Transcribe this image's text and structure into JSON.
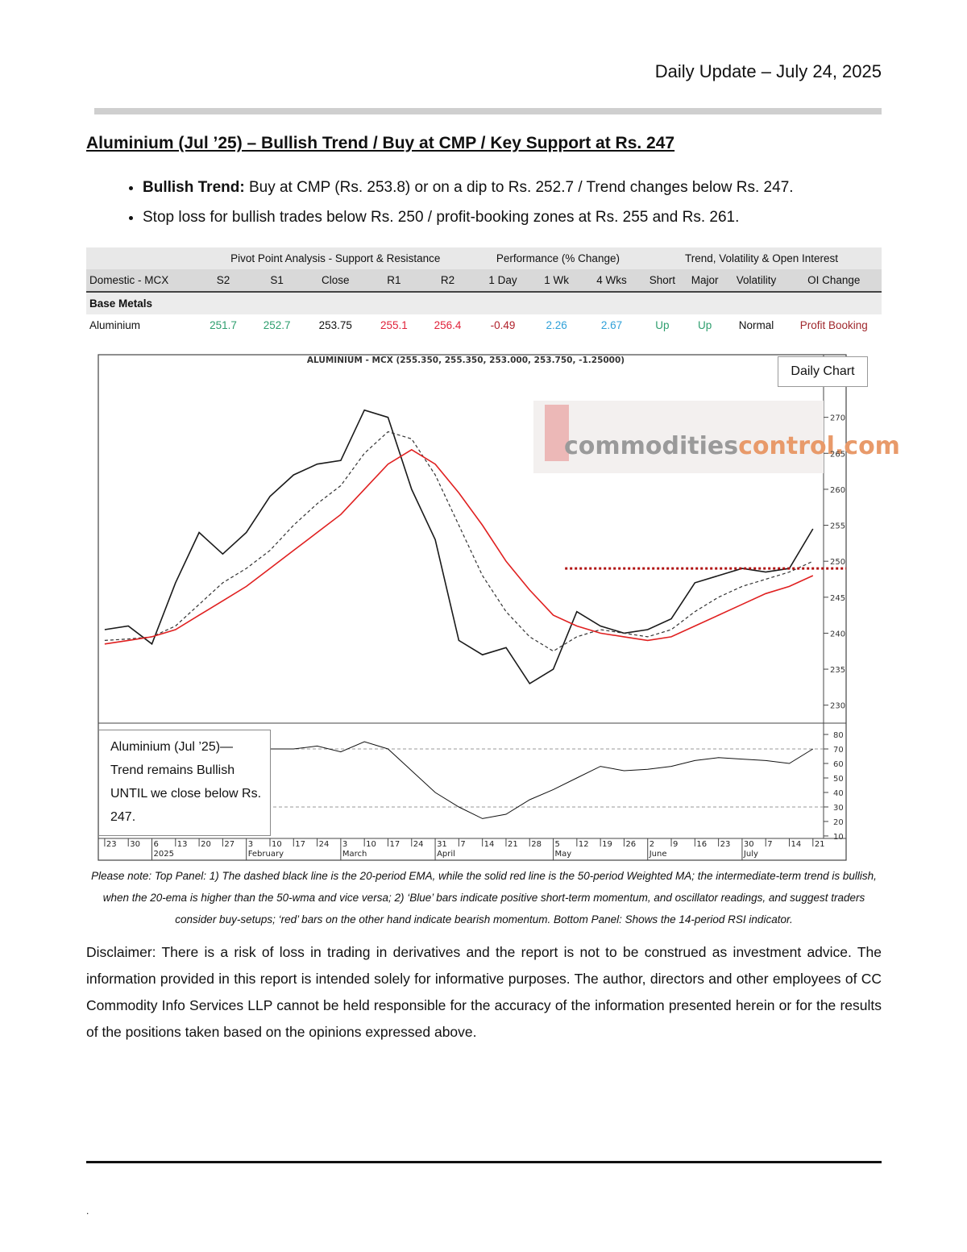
{
  "header": {
    "title": "Daily Update – July 24, 2025"
  },
  "section_title": "Aluminium (Jul ’25) – Bullish Trend / Buy at CMP / Key Support at Rs. 247",
  "bullets": [
    {
      "label": "Bullish Trend:",
      "text": "Buy at CMP (Rs. 253.8) or on a dip to Rs. 252.7 / Trend changes below Rs. 247."
    },
    {
      "text": "Stop loss for bullish trades below Rs. 250 / profit-booking zones at Rs. 255 and Rs. 261."
    }
  ],
  "table": {
    "groups": [
      "Pivot Point Analysis - Support & Resistance",
      "Performance (% Change)",
      "Trend, Volatility & Open Interest"
    ],
    "columns": [
      "Domestic - MCX",
      "S2",
      "S1",
      "Close",
      "R1",
      "R2",
      "1 Day",
      "1 Wk",
      "4 Wks",
      "Short",
      "Major",
      "Volatility",
      "OI Change"
    ],
    "section": "Base Metals",
    "rows": [
      [
        "Aluminium",
        "251.7",
        "252.7",
        "253.75",
        "255.1",
        "256.4",
        "-0.49",
        "2.26",
        "2.67",
        "Up",
        "Up",
        "Normal",
        "Profit Booking"
      ]
    ]
  },
  "chart_data": {
    "type": "line",
    "title": "ALUMINIUM - MCX (255.350, 255.350, 253.000, 253.750, -1.25000)",
    "label": "Daily Chart",
    "watermark": [
      "commodities",
      "control.com"
    ],
    "annotation": "Aluminium (Jul ’25)—Trend remains Bullish UNTIL we close below Rs. 247.",
    "x": [
      0,
      1,
      2,
      3,
      4,
      5,
      6,
      7,
      8,
      9,
      10,
      11,
      12,
      13,
      14,
      15,
      16,
      17,
      18,
      19,
      20,
      21,
      22,
      23,
      24,
      25,
      26,
      27,
      28,
      29,
      30
    ],
    "xlim": [
      -0.27,
      30.45
    ],
    "xticks": [
      {
        "value": 0,
        "label": "23"
      },
      {
        "value": 1,
        "label": "30"
      },
      {
        "value": 2,
        "label": "6"
      },
      {
        "value": 3,
        "label": "13"
      },
      {
        "value": 4,
        "label": "20"
      },
      {
        "value": 5,
        "label": "27"
      },
      {
        "value": 6,
        "label": "3"
      },
      {
        "value": 7,
        "label": "10"
      },
      {
        "value": 8,
        "label": "17"
      },
      {
        "value": 9,
        "label": "24"
      },
      {
        "value": 10,
        "label": "3"
      },
      {
        "value": 11,
        "label": "10"
      },
      {
        "value": 12,
        "label": "17"
      },
      {
        "value": 13,
        "label": "24"
      },
      {
        "value": 14,
        "label": "31"
      },
      {
        "value": 15,
        "label": "7"
      },
      {
        "value": 16,
        "label": "14"
      },
      {
        "value": 17,
        "label": "21"
      },
      {
        "value": 18,
        "label": "28"
      },
      {
        "value": 19,
        "label": "5"
      },
      {
        "value": 20,
        "label": "12"
      },
      {
        "value": 21,
        "label": "19"
      },
      {
        "value": 22,
        "label": "26"
      },
      {
        "value": 23,
        "label": "2"
      },
      {
        "value": 24,
        "label": "9"
      },
      {
        "value": 25,
        "label": "16"
      },
      {
        "value": 26,
        "label": "23"
      },
      {
        "value": 27,
        "label": "30"
      },
      {
        "value": 28,
        "label": "7"
      },
      {
        "value": 29,
        "label": "14"
      },
      {
        "value": 30,
        "label": "21"
      }
    ],
    "month_ticks": [
      {
        "value": 2,
        "label": "2025"
      },
      {
        "value": 6,
        "label": "February"
      },
      {
        "value": 10,
        "label": "March"
      },
      {
        "value": 14,
        "label": "April"
      },
      {
        "value": 19,
        "label": "May"
      },
      {
        "value": 23,
        "label": "June"
      },
      {
        "value": 27,
        "label": "July"
      }
    ],
    "ylim": [
      227.5,
      278.7
    ],
    "yticks": [
      230,
      235,
      240,
      245,
      250,
      255,
      260,
      265,
      270
    ],
    "series": [
      {
        "color": "#1a1a1a",
        "dash": false,
        "values": [
          240.5,
          241,
          238.5,
          247,
          254,
          251,
          254,
          259,
          262,
          263.5,
          264,
          271,
          270,
          260,
          253,
          239,
          237,
          238,
          233,
          235,
          243,
          241,
          240,
          240.5,
          242,
          247,
          248,
          249,
          248.5,
          249,
          254.5
        ]
      },
      {
        "color": "#333333",
        "dash": true,
        "values": [
          239,
          239.2,
          239.5,
          241,
          244,
          247,
          249,
          251.5,
          255,
          258,
          260.5,
          265,
          268,
          267,
          262,
          255,
          248,
          243,
          239.5,
          237.5,
          239.5,
          240.5,
          240,
          239.5,
          240.5,
          243,
          245,
          246.5,
          247.5,
          248.5,
          250
        ]
      },
      {
        "color": "#e02020",
        "dash": false,
        "values": [
          238.5,
          239,
          239.5,
          240.5,
          242.5,
          244.5,
          246.5,
          249,
          251.5,
          254,
          256.5,
          260,
          263.5,
          265.5,
          263.5,
          259.5,
          255,
          250,
          246,
          242.5,
          241,
          240,
          239.5,
          239,
          239.5,
          241,
          242.5,
          244,
          245.5,
          246.5,
          248
        ]
      }
    ],
    "resistance": {
      "value": 249,
      "x_start": 19.5,
      "color": "#b01010"
    },
    "rsi": {
      "ylim": [
        8.3,
        87.8
      ],
      "yticks": [
        10,
        20,
        30,
        40,
        50,
        60,
        70,
        80
      ],
      "levels": [
        70,
        30
      ],
      "color": "#111111",
      "values": [
        null,
        null,
        null,
        null,
        null,
        null,
        null,
        70,
        70,
        72,
        68,
        75,
        70,
        55,
        40,
        30,
        22,
        25,
        35,
        42,
        50,
        58,
        55,
        56,
        58,
        62,
        64,
        63,
        62,
        60,
        70
      ]
    }
  },
  "chart_note": "Please note: Top Panel: 1) The dashed black line is the 20-period EMA, while the solid red line is the 50-period Weighted MA; the intermediate-term trend is bullish, when the 20-ema is higher than the 50-wma and vice versa; 2) ‘Blue’ bars indicate positive short-term momentum, and oscillator readings, and suggest traders consider buy-setups; ‘red’ bars on the other hand indicate bearish momentum. Bottom Panel: Shows the 14-period RSI indicator.",
  "disclaimer": "Disclaimer: There is a risk of loss in trading in derivatives and the report is not to be construed as investment advice. The information provided in this report is intended solely for informative purposes. The author, directors and other employees of CC Commodity Info Services LLP cannot be held responsible for the accuracy of the information presented herein or for the results of the positions taken based on the opinions expressed above.",
  "footer": "."
}
